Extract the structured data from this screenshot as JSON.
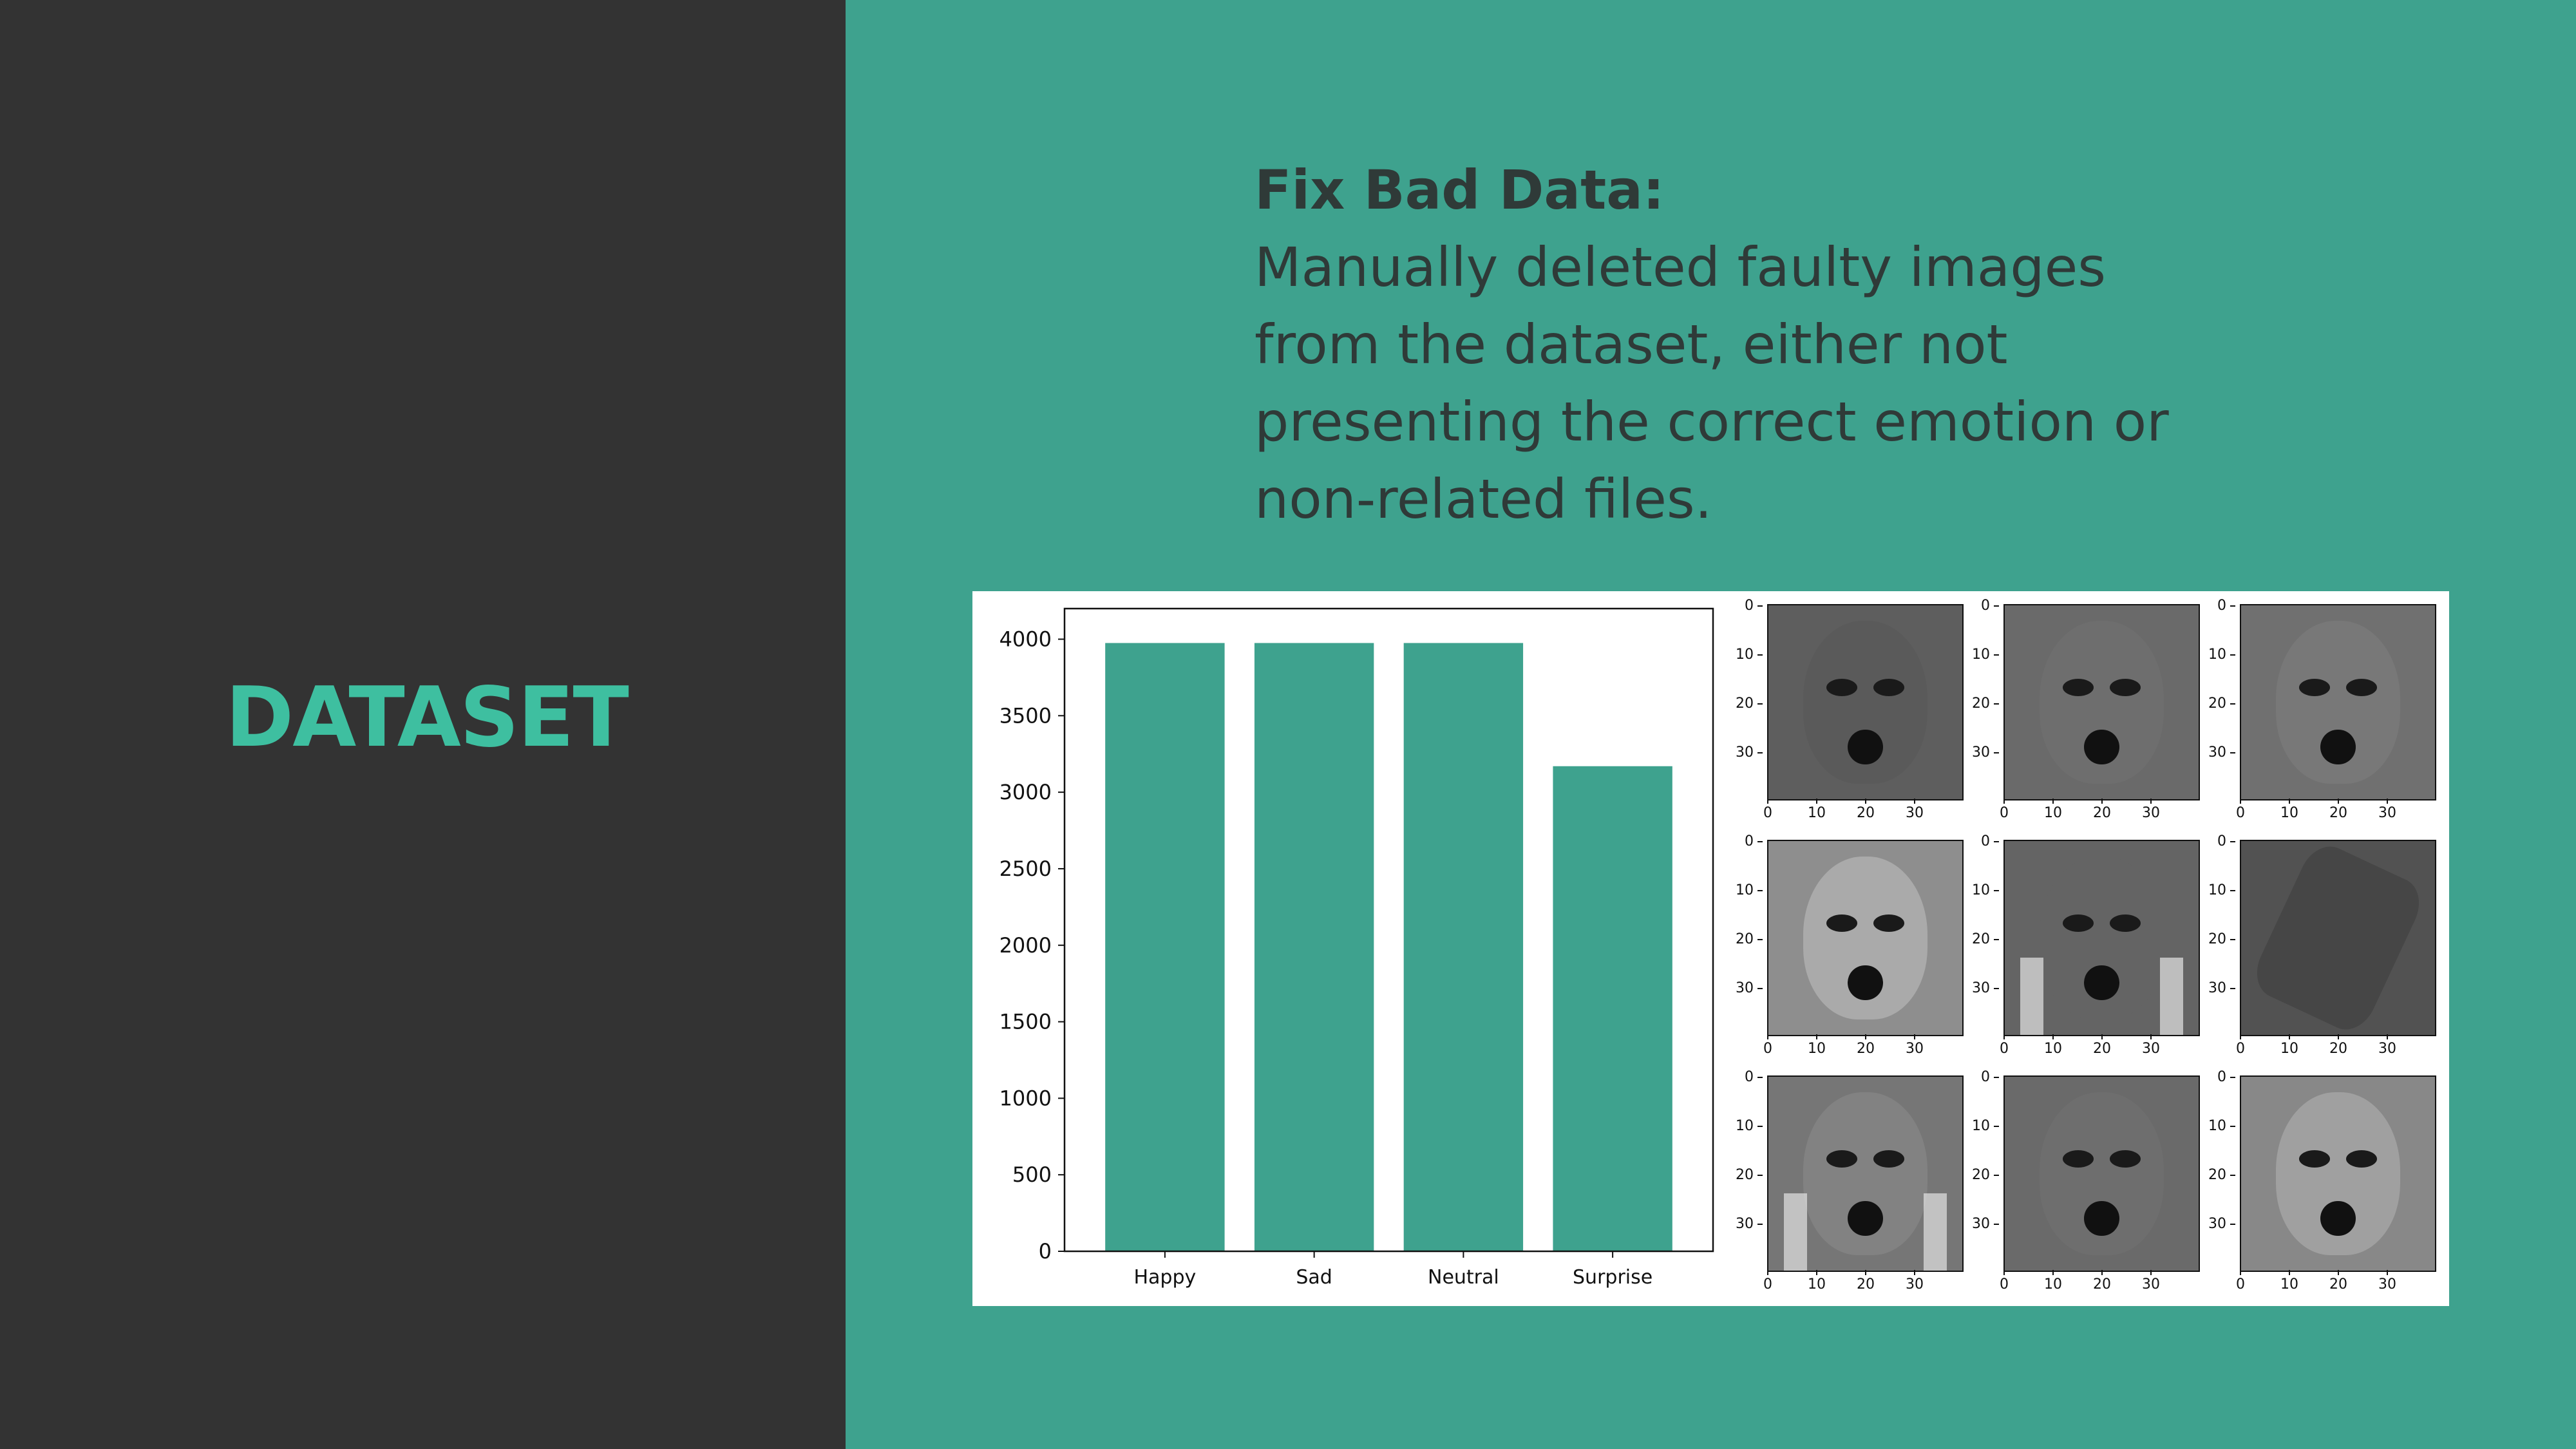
{
  "slide": {
    "section_title": "DATASET",
    "heading": "Fix Bad Data:",
    "body_lines": [
      "Manually deleted faulty images",
      "from the dataset, either not",
      "presenting the correct emotion or",
      "non-related files."
    ]
  },
  "colors": {
    "left_panel": "#333333",
    "right_panel": "#3ea28e",
    "title": "#3ebfa0",
    "bar": "#3ea28e",
    "text": "#2f3a38"
  },
  "chart_data": {
    "type": "bar",
    "categories": [
      "Happy",
      "Sad",
      "Neutral",
      "Surprise"
    ],
    "values": [
      3975,
      3975,
      3975,
      3170
    ],
    "ylim": [
      0,
      4200
    ],
    "yticks": [
      "0",
      "500",
      "1000",
      "1500",
      "2000",
      "2500",
      "3000",
      "3500",
      "4000"
    ],
    "grid": false,
    "title": "",
    "xlabel": "",
    "ylabel": ""
  },
  "face_grid": {
    "tick_labels": [
      "0",
      "10",
      "20",
      "30"
    ],
    "images": [
      {
        "name": "face-girl-surprised-icon",
        "tone": 0.45
      },
      {
        "name": "face-man-shocked-icon",
        "tone": 0.55
      },
      {
        "name": "face-man-wide-eyes-icon",
        "tone": 0.6
      },
      {
        "name": "face-woman-smiling-icon",
        "tone": 0.85
      },
      {
        "name": "face-man-hands-cheeks-icon",
        "tone": 0.5
      },
      {
        "name": "faulty-image-unrelated-icon",
        "tone": 0.35
      },
      {
        "name": "face-woman-hands-cheeks-icon",
        "tone": 0.65
      },
      {
        "name": "face-old-man-icon",
        "tone": 0.55
      },
      {
        "name": "face-woman-laughing-icon",
        "tone": 0.8
      }
    ]
  }
}
